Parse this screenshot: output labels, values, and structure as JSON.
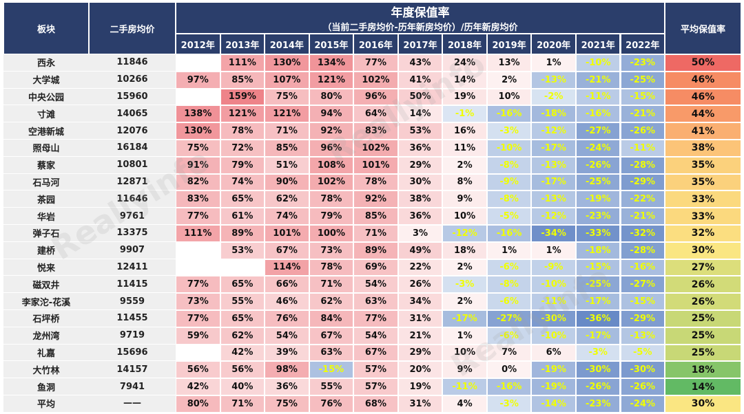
{
  "header": {
    "district": "板块",
    "price": "二手房均价",
    "title": "年度保值率",
    "subtitle": "（当前二手房均价-历年新房均价）/历年新房均价",
    "avg": "平均保值率",
    "years": [
      "2012年",
      "2013年",
      "2014年",
      "2015年",
      "2016年",
      "2017年",
      "2018年",
      "2019年",
      "2020年",
      "2021年",
      "2022年"
    ]
  },
  "rows": [
    {
      "name": "西永",
      "price": "11846",
      "values": [
        null,
        111,
        130,
        134,
        77,
        43,
        24,
        13,
        1,
        -10,
        -23
      ],
      "avg": 50
    },
    {
      "name": "大学城",
      "price": "10266",
      "values": [
        97,
        85,
        107,
        121,
        102,
        41,
        14,
        2,
        -13,
        -21,
        -25
      ],
      "avg": 46
    },
    {
      "name": "中央公园",
      "price": "15960",
      "values": [
        null,
        159,
        75,
        80,
        96,
        50,
        19,
        10,
        -2,
        -11,
        -15
      ],
      "avg": 46
    },
    {
      "name": "寸滩",
      "price": "14065",
      "values": [
        138,
        121,
        121,
        94,
        64,
        14,
        -1,
        -16,
        -18,
        -16,
        -21
      ],
      "avg": 44
    },
    {
      "name": "空港新城",
      "price": "12076",
      "values": [
        130,
        78,
        71,
        92,
        83,
        53,
        16,
        -3,
        -12,
        -27,
        -26
      ],
      "avg": 41
    },
    {
      "name": "照母山",
      "price": "16184",
      "values": [
        75,
        72,
        85,
        96,
        102,
        36,
        11,
        -10,
        -17,
        -24,
        -11
      ],
      "avg": 38
    },
    {
      "name": "蔡家",
      "price": "10801",
      "values": [
        91,
        79,
        51,
        108,
        101,
        29,
        2,
        -8,
        -13,
        -26,
        -28
      ],
      "avg": 35
    },
    {
      "name": "石马河",
      "price": "12871",
      "values": [
        82,
        74,
        90,
        102,
        78,
        30,
        8,
        -9,
        -17,
        -25,
        -29
      ],
      "avg": 35
    },
    {
      "name": "茶园",
      "price": "11646",
      "values": [
        83,
        65,
        62,
        78,
        92,
        38,
        9,
        -8,
        -13,
        -19,
        -22
      ],
      "avg": 33
    },
    {
      "name": "华岩",
      "price": "9761",
      "values": [
        77,
        61,
        74,
        79,
        85,
        36,
        10,
        -5,
        -12,
        -23,
        -21
      ],
      "avg": 33
    },
    {
      "name": "弹子石",
      "price": "13375",
      "values": [
        111,
        89,
        101,
        100,
        71,
        3,
        -12,
        -16,
        -34,
        -33,
        -32
      ],
      "avg": 32
    },
    {
      "name": "建桥",
      "price": "9907",
      "values": [
        null,
        53,
        67,
        73,
        89,
        49,
        18,
        1,
        1,
        -18,
        -28
      ],
      "avg": 30
    },
    {
      "name": "悦来",
      "price": "12411",
      "values": [
        null,
        null,
        114,
        78,
        69,
        22,
        2,
        -6,
        -9,
        -15,
        -16
      ],
      "avg": 27
    },
    {
      "name": "磁双井",
      "price": "11415",
      "values": [
        77,
        65,
        66,
        71,
        54,
        26,
        -3,
        -8,
        -10,
        -25,
        -27
      ],
      "avg": 26
    },
    {
      "name": "李家沱-花溪",
      "price": "9559",
      "values": [
        73,
        55,
        46,
        62,
        63,
        34,
        2,
        -6,
        -11,
        -17,
        -15
      ],
      "avg": 26
    },
    {
      "name": "石坪桥",
      "price": "11455",
      "values": [
        77,
        65,
        76,
        84,
        77,
        31,
        -17,
        -27,
        -30,
        -36,
        -29
      ],
      "avg": 25
    },
    {
      "name": "龙州湾",
      "price": "9719",
      "values": [
        59,
        62,
        54,
        67,
        54,
        21,
        1,
        -6,
        -10,
        -17,
        -13
      ],
      "avg": 25
    },
    {
      "name": "礼嘉",
      "price": "15696",
      "values": [
        null,
        42,
        39,
        63,
        67,
        29,
        10,
        7,
        6,
        -3,
        -5
      ],
      "avg": 25
    },
    {
      "name": "大竹林",
      "price": "14157",
      "values": [
        56,
        56,
        98,
        -15,
        57,
        20,
        9,
        0,
        -19,
        -30,
        -30
      ],
      "avg": 18
    },
    {
      "name": "鱼洞",
      "price": "7941",
      "values": [
        42,
        40,
        36,
        55,
        57,
        19,
        -11,
        -16,
        -19,
        -26,
        -26
      ],
      "avg": 14
    },
    {
      "name": "平均",
      "price": "——",
      "values": [
        80,
        71,
        75,
        76,
        68,
        31,
        4,
        -3,
        -14,
        -23,
        -24
      ],
      "avg": 30
    }
  ],
  "watermark": "Reallyinfo"
}
